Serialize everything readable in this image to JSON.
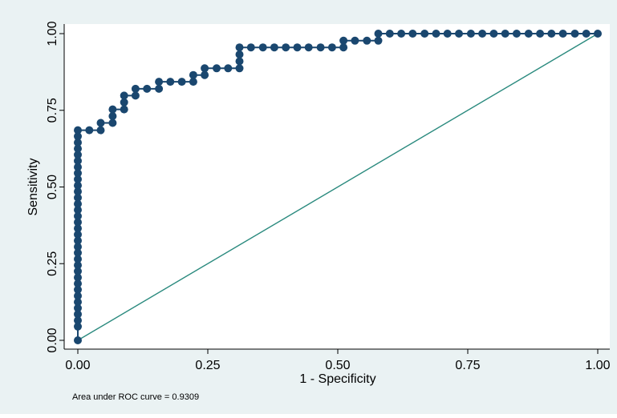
{
  "chart_data": {
    "type": "line",
    "title": "",
    "xlabel": "1 - Specificity",
    "ylabel": "Sensitivity",
    "xlim": [
      0,
      1
    ],
    "ylim": [
      0,
      1
    ],
    "x_ticks": [
      "0.00",
      "0.25",
      "0.50",
      "0.75",
      "1.00"
    ],
    "y_ticks": [
      "0.00",
      "0.25",
      "0.50",
      "0.75",
      "1.00"
    ],
    "grid": false,
    "note": "Area under ROC curve = 0.9309",
    "colors": {
      "background": "#eaf2f3",
      "plot_background": "#ffffff",
      "marker": "#1a476f",
      "reference_line": "#2a8a7e",
      "axis": "#000000"
    },
    "series": [
      {
        "kind": "roc-curve",
        "points": [
          [
            0.0,
            0.0
          ],
          [
            0.0,
            0.045
          ],
          [
            0.0,
            0.065
          ],
          [
            0.0,
            0.085
          ],
          [
            0.0,
            0.105
          ],
          [
            0.0,
            0.125
          ],
          [
            0.0,
            0.145
          ],
          [
            0.0,
            0.165
          ],
          [
            0.0,
            0.185
          ],
          [
            0.0,
            0.205
          ],
          [
            0.0,
            0.225
          ],
          [
            0.0,
            0.245
          ],
          [
            0.0,
            0.265
          ],
          [
            0.0,
            0.285
          ],
          [
            0.0,
            0.305
          ],
          [
            0.0,
            0.325
          ],
          [
            0.0,
            0.345
          ],
          [
            0.0,
            0.365
          ],
          [
            0.0,
            0.385
          ],
          [
            0.0,
            0.405
          ],
          [
            0.0,
            0.425
          ],
          [
            0.0,
            0.445
          ],
          [
            0.0,
            0.465
          ],
          [
            0.0,
            0.485
          ],
          [
            0.0,
            0.505
          ],
          [
            0.0,
            0.525
          ],
          [
            0.0,
            0.545
          ],
          [
            0.0,
            0.565
          ],
          [
            0.0,
            0.585
          ],
          [
            0.0,
            0.605
          ],
          [
            0.0,
            0.625
          ],
          [
            0.0,
            0.645
          ],
          [
            0.0,
            0.665
          ],
          [
            0.0,
            0.685
          ],
          [
            0.022,
            0.685
          ],
          [
            0.044,
            0.685
          ],
          [
            0.044,
            0.709
          ],
          [
            0.067,
            0.709
          ],
          [
            0.067,
            0.731
          ],
          [
            0.067,
            0.753
          ],
          [
            0.089,
            0.753
          ],
          [
            0.089,
            0.776
          ],
          [
            0.089,
            0.798
          ],
          [
            0.111,
            0.798
          ],
          [
            0.111,
            0.82
          ],
          [
            0.133,
            0.82
          ],
          [
            0.156,
            0.82
          ],
          [
            0.156,
            0.843
          ],
          [
            0.178,
            0.843
          ],
          [
            0.2,
            0.843
          ],
          [
            0.222,
            0.843
          ],
          [
            0.222,
            0.865
          ],
          [
            0.244,
            0.865
          ],
          [
            0.244,
            0.887
          ],
          [
            0.267,
            0.887
          ],
          [
            0.289,
            0.887
          ],
          [
            0.311,
            0.887
          ],
          [
            0.311,
            0.91
          ],
          [
            0.311,
            0.932
          ],
          [
            0.311,
            0.955
          ],
          [
            0.333,
            0.955
          ],
          [
            0.356,
            0.955
          ],
          [
            0.378,
            0.955
          ],
          [
            0.4,
            0.955
          ],
          [
            0.422,
            0.955
          ],
          [
            0.444,
            0.955
          ],
          [
            0.467,
            0.955
          ],
          [
            0.489,
            0.955
          ],
          [
            0.511,
            0.955
          ],
          [
            0.511,
            0.977
          ],
          [
            0.533,
            0.977
          ],
          [
            0.556,
            0.977
          ],
          [
            0.578,
            0.977
          ],
          [
            0.578,
            1.0
          ],
          [
            0.6,
            1.0
          ],
          [
            0.622,
            1.0
          ],
          [
            0.644,
            1.0
          ],
          [
            0.667,
            1.0
          ],
          [
            0.689,
            1.0
          ],
          [
            0.711,
            1.0
          ],
          [
            0.733,
            1.0
          ],
          [
            0.756,
            1.0
          ],
          [
            0.778,
            1.0
          ],
          [
            0.8,
            1.0
          ],
          [
            0.822,
            1.0
          ],
          [
            0.844,
            1.0
          ],
          [
            0.867,
            1.0
          ],
          [
            0.889,
            1.0
          ],
          [
            0.911,
            1.0
          ],
          [
            0.933,
            1.0
          ],
          [
            0.956,
            1.0
          ],
          [
            0.978,
            1.0
          ],
          [
            1.0,
            1.0
          ]
        ]
      },
      {
        "kind": "reference-line",
        "points": [
          [
            0,
            0
          ],
          [
            1,
            1
          ]
        ]
      }
    ]
  }
}
